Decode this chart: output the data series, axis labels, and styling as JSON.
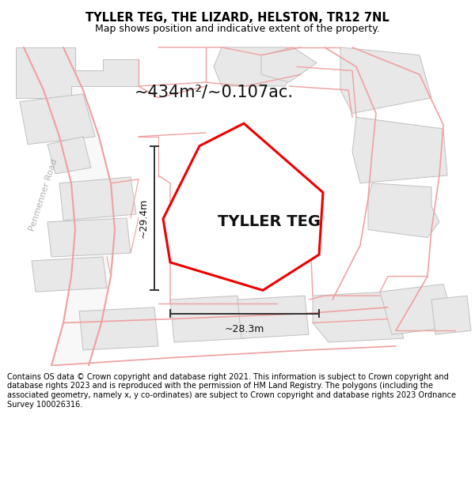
{
  "title": "TYLLER TEG, THE LIZARD, HELSTON, TR12 7NL",
  "subtitle": "Map shows position and indicative extent of the property.",
  "area_label": "~434m²/~0.107ac.",
  "property_label": "TYLLER TEG",
  "dim_vertical": "~29.4m",
  "dim_horizontal": "~28.3m",
  "road_label": "Penmenner Road",
  "copyright_text": "Contains OS data © Crown copyright and database right 2021. This information is subject to Crown copyright and database rights 2023 and is reproduced with the permission of HM Land Registry. The polygons (including the associated geometry, namely x, y co-ordinates) are subject to Crown copyright and database rights 2023 Ordnance Survey 100026316.",
  "bg_color": "#ffffff",
  "map_bg": "#ffffff",
  "building_fill": "#e8e8e8",
  "building_edge": "#c0c0c0",
  "road_line_color": "#f0a0a0",
  "road_edge_color": "#d08080",
  "dim_line_color": "#303030",
  "property_poly_color": "#ee0000",
  "road_label_color": "#b0b0b0",
  "figsize": [
    6.0,
    6.25
  ],
  "dpi": 100,
  "title_fontsize": 10.5,
  "subtitle_fontsize": 9,
  "area_fontsize": 15,
  "label_fontsize": 14,
  "dim_fontsize": 9,
  "road_fontsize": 8,
  "copyright_fontsize": 7
}
